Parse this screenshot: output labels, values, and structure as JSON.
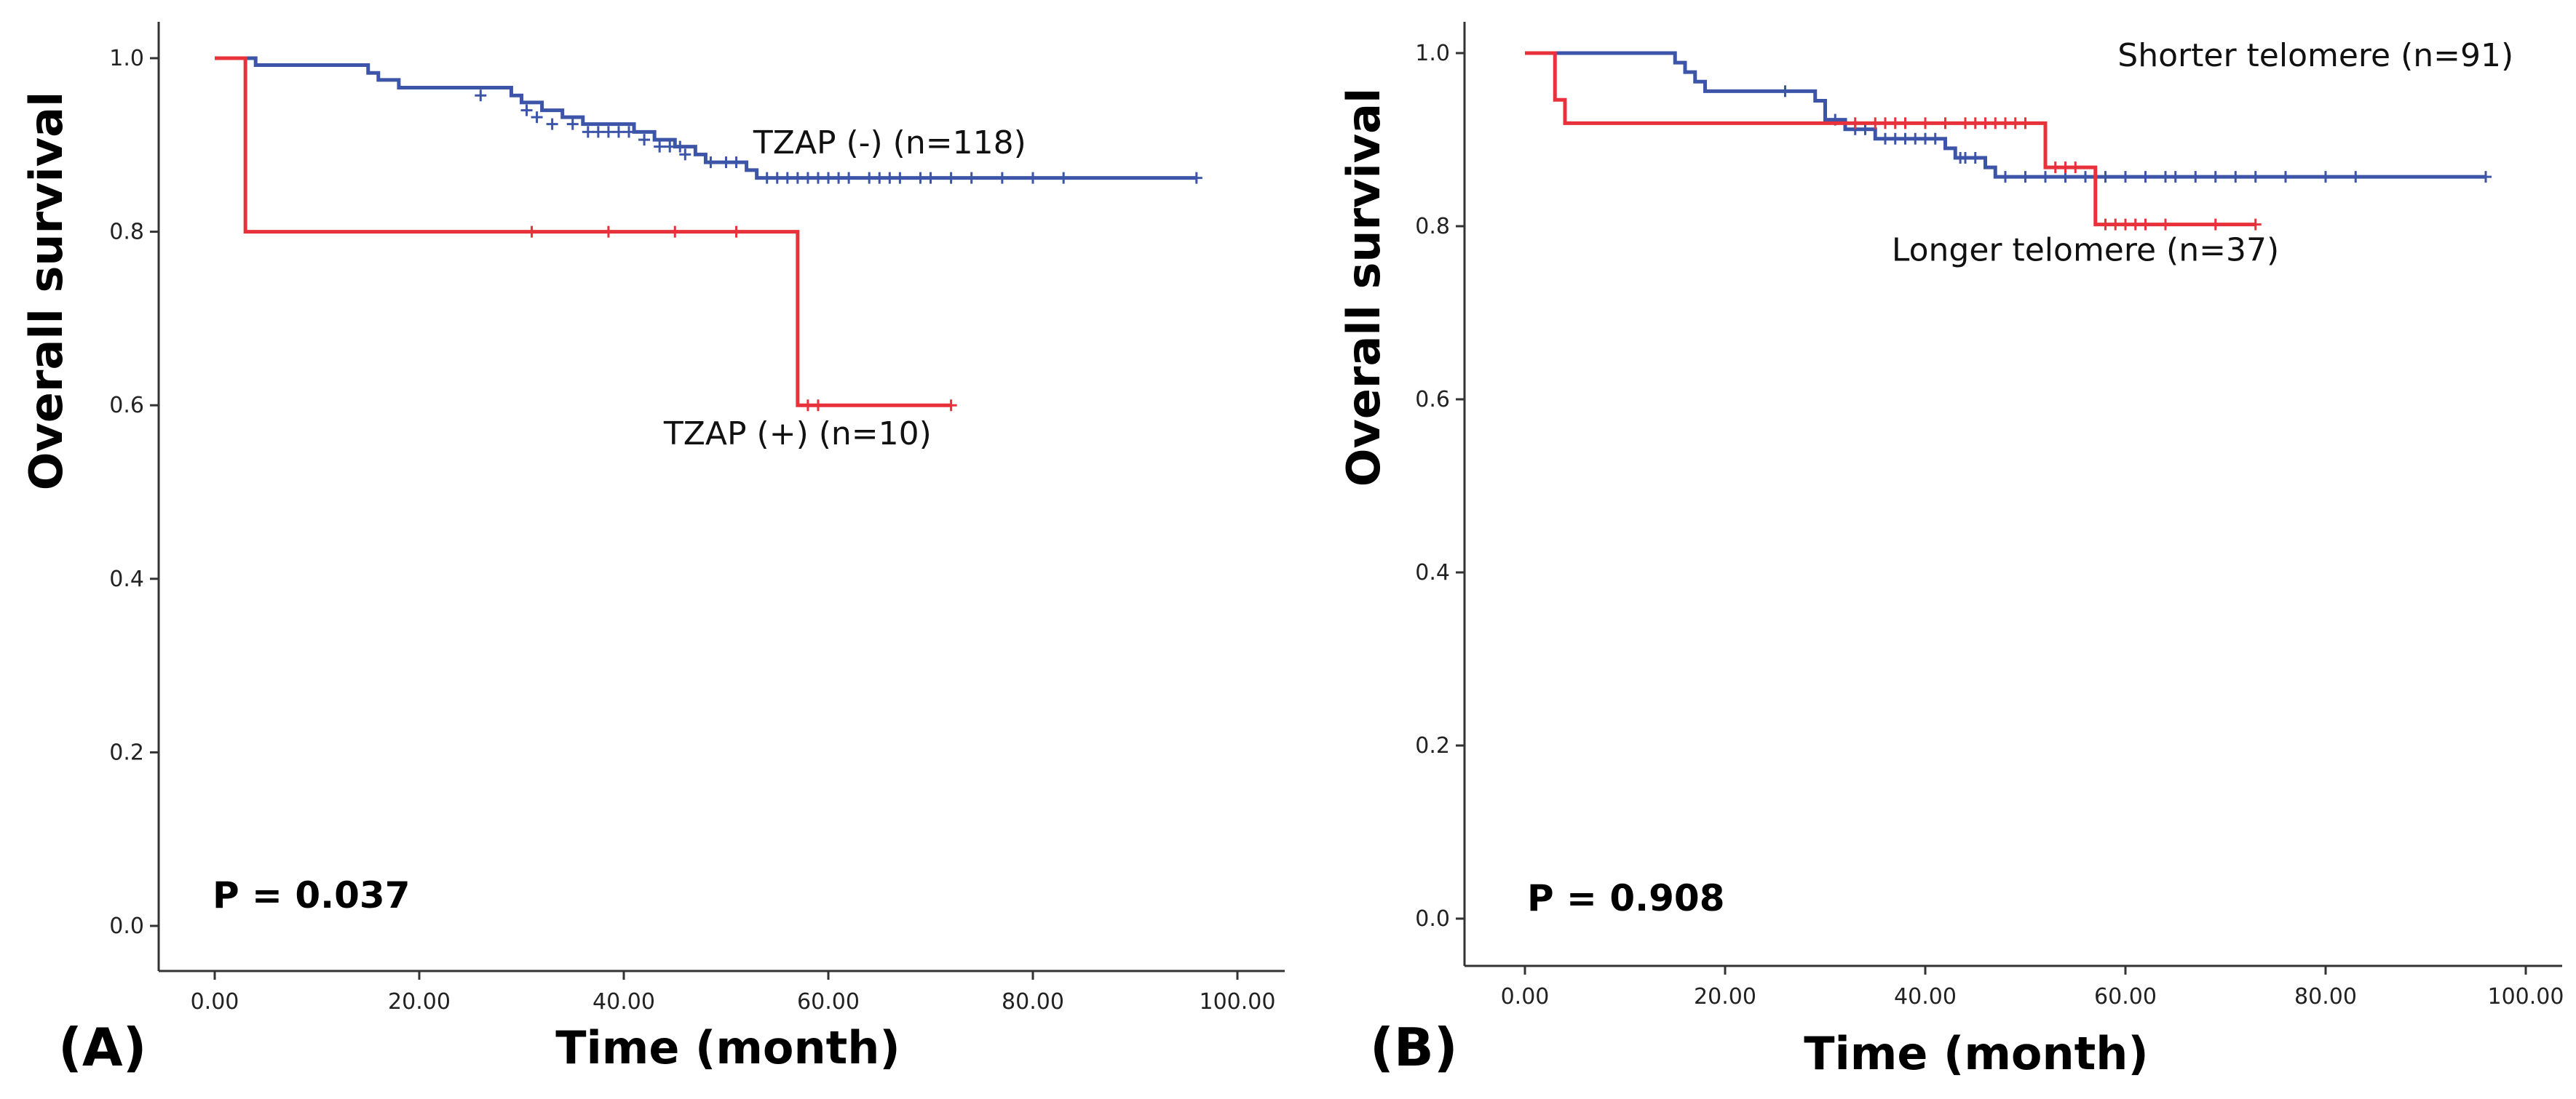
{
  "chart_data": [
    {
      "type": "line",
      "subtype": "kaplan-meier",
      "panel_label": "(A)",
      "xlabel": "Time (month)",
      "ylabel": "Overall survival",
      "xlim": [
        0,
        100
      ],
      "ylim": [
        0,
        1
      ],
      "xticks": [
        "0.00",
        "20.00",
        "40.00",
        "60.00",
        "80.00",
        "100.00"
      ],
      "yticks": [
        "0.0",
        "0.2",
        "0.4",
        "0.6",
        "0.8",
        "1.0"
      ],
      "p_value_text": "P = 0.037",
      "series": [
        {
          "name": "TZAP (-) (n=118)",
          "color": "#3c55a8",
          "label_pos": [
            66,
            0.89
          ],
          "steps": [
            [
              0,
              1.0
            ],
            [
              4,
              0.992
            ],
            [
              15,
              0.983
            ],
            [
              16,
              0.975
            ],
            [
              18,
              0.966
            ],
            [
              29,
              0.957
            ],
            [
              30,
              0.949
            ],
            [
              32,
              0.94
            ],
            [
              34,
              0.932
            ],
            [
              36,
              0.924
            ],
            [
              41,
              0.915
            ],
            [
              43,
              0.906
            ],
            [
              45,
              0.898
            ],
            [
              47,
              0.889
            ],
            [
              48,
              0.88
            ],
            [
              52,
              0.871
            ],
            [
              53,
              0.862
            ],
            [
              96,
              0.862
            ]
          ],
          "censor": [
            [
              26,
              0.957
            ],
            [
              30.5,
              0.94
            ],
            [
              31.5,
              0.932
            ],
            [
              33,
              0.924
            ],
            [
              35,
              0.924
            ],
            [
              36.5,
              0.915
            ],
            [
              37.5,
              0.915
            ],
            [
              38.5,
              0.915
            ],
            [
              39.5,
              0.915
            ],
            [
              40.5,
              0.915
            ],
            [
              42,
              0.906
            ],
            [
              43.5,
              0.898
            ],
            [
              44.5,
              0.898
            ],
            [
              45.5,
              0.898
            ],
            [
              46,
              0.889
            ],
            [
              48.5,
              0.88
            ],
            [
              50,
              0.88
            ],
            [
              51,
              0.88
            ],
            [
              54,
              0.862
            ],
            [
              55,
              0.862
            ],
            [
              56,
              0.862
            ],
            [
              57,
              0.862
            ],
            [
              58,
              0.862
            ],
            [
              59,
              0.862
            ],
            [
              60,
              0.862
            ],
            [
              61,
              0.862
            ],
            [
              62,
              0.862
            ],
            [
              64,
              0.862
            ],
            [
              65,
              0.862
            ],
            [
              66,
              0.862
            ],
            [
              67,
              0.862
            ],
            [
              69,
              0.862
            ],
            [
              70,
              0.862
            ],
            [
              72,
              0.862
            ],
            [
              74,
              0.862
            ],
            [
              77,
              0.862
            ],
            [
              80,
              0.862
            ],
            [
              83,
              0.862
            ],
            [
              96,
              0.862
            ]
          ]
        },
        {
          "name": "TZAP (+) (n=10)",
          "color": "#e8313a",
          "label_pos": [
            57,
            0.555
          ],
          "steps": [
            [
              0,
              1.0
            ],
            [
              3,
              0.8
            ],
            [
              57,
              0.6
            ],
            [
              72,
              0.6
            ]
          ],
          "censor": [
            [
              31,
              0.8
            ],
            [
              38.5,
              0.8
            ],
            [
              45,
              0.8
            ],
            [
              51,
              0.8
            ],
            [
              58,
              0.6
            ],
            [
              59,
              0.6
            ],
            [
              72,
              0.6
            ]
          ]
        }
      ]
    },
    {
      "type": "line",
      "subtype": "kaplan-meier",
      "panel_label": "(B)",
      "xlabel": "Time (month)",
      "ylabel": "Overall survival",
      "xlim": [
        0,
        100
      ],
      "ylim": [
        0,
        1
      ],
      "xticks": [
        "0.00",
        "20.00",
        "40.00",
        "60.00",
        "80.00",
        "100.00"
      ],
      "yticks": [
        "0.0",
        "0.2",
        "0.4",
        "0.6",
        "0.8",
        "1.0"
      ],
      "p_value_text": "P = 0.908",
      "series": [
        {
          "name": "Shorter telomere (n=91)",
          "color": "#3c55a8",
          "label_pos": [
            79,
            0.985
          ],
          "steps": [
            [
              0,
              1.0
            ],
            [
              15,
              0.989
            ],
            [
              16,
              0.978
            ],
            [
              17,
              0.967
            ],
            [
              18,
              0.956
            ],
            [
              29,
              0.945
            ],
            [
              30,
              0.923
            ],
            [
              32,
              0.912
            ],
            [
              35,
              0.901
            ],
            [
              42,
              0.89
            ],
            [
              43,
              0.879
            ],
            [
              46,
              0.868
            ],
            [
              47,
              0.857
            ],
            [
              96,
              0.857
            ]
          ],
          "censor": [
            [
              26,
              0.956
            ],
            [
              31,
              0.923
            ],
            [
              33,
              0.912
            ],
            [
              34,
              0.912
            ],
            [
              36,
              0.901
            ],
            [
              37,
              0.901
            ],
            [
              38,
              0.901
            ],
            [
              39,
              0.901
            ],
            [
              40,
              0.901
            ],
            [
              41,
              0.901
            ],
            [
              43.5,
              0.879
            ],
            [
              44,
              0.879
            ],
            [
              45,
              0.879
            ],
            [
              48,
              0.857
            ],
            [
              50,
              0.857
            ],
            [
              52,
              0.857
            ],
            [
              54,
              0.857
            ],
            [
              56,
              0.857
            ],
            [
              58,
              0.857
            ],
            [
              60,
              0.857
            ],
            [
              62,
              0.857
            ],
            [
              64,
              0.857
            ],
            [
              65,
              0.857
            ],
            [
              67,
              0.857
            ],
            [
              69,
              0.857
            ],
            [
              71,
              0.857
            ],
            [
              73,
              0.857
            ],
            [
              76,
              0.857
            ],
            [
              80,
              0.857
            ],
            [
              83,
              0.857
            ],
            [
              96,
              0.857
            ]
          ]
        },
        {
          "name": "Longer telomere (n=37)",
          "color": "#e8313a",
          "label_pos": [
            56,
            0.76
          ],
          "steps": [
            [
              0,
              1.0
            ],
            [
              3,
              0.946
            ],
            [
              4,
              0.919
            ],
            [
              52,
              0.868
            ],
            [
              57,
              0.802
            ],
            [
              73,
              0.802
            ]
          ],
          "censor": [
            [
              33,
              0.919
            ],
            [
              35,
              0.919
            ],
            [
              36,
              0.919
            ],
            [
              37,
              0.919
            ],
            [
              38,
              0.919
            ],
            [
              40,
              0.919
            ],
            [
              42,
              0.919
            ],
            [
              44,
              0.919
            ],
            [
              45,
              0.919
            ],
            [
              46,
              0.919
            ],
            [
              47,
              0.919
            ],
            [
              48,
              0.919
            ],
            [
              49,
              0.919
            ],
            [
              50,
              0.919
            ],
            [
              53,
              0.868
            ],
            [
              54,
              0.868
            ],
            [
              55,
              0.868
            ],
            [
              58,
              0.802
            ],
            [
              59,
              0.802
            ],
            [
              60,
              0.802
            ],
            [
              61,
              0.802
            ],
            [
              62,
              0.802
            ],
            [
              64,
              0.802
            ],
            [
              69,
              0.802
            ],
            [
              73,
              0.802
            ]
          ]
        }
      ]
    }
  ]
}
